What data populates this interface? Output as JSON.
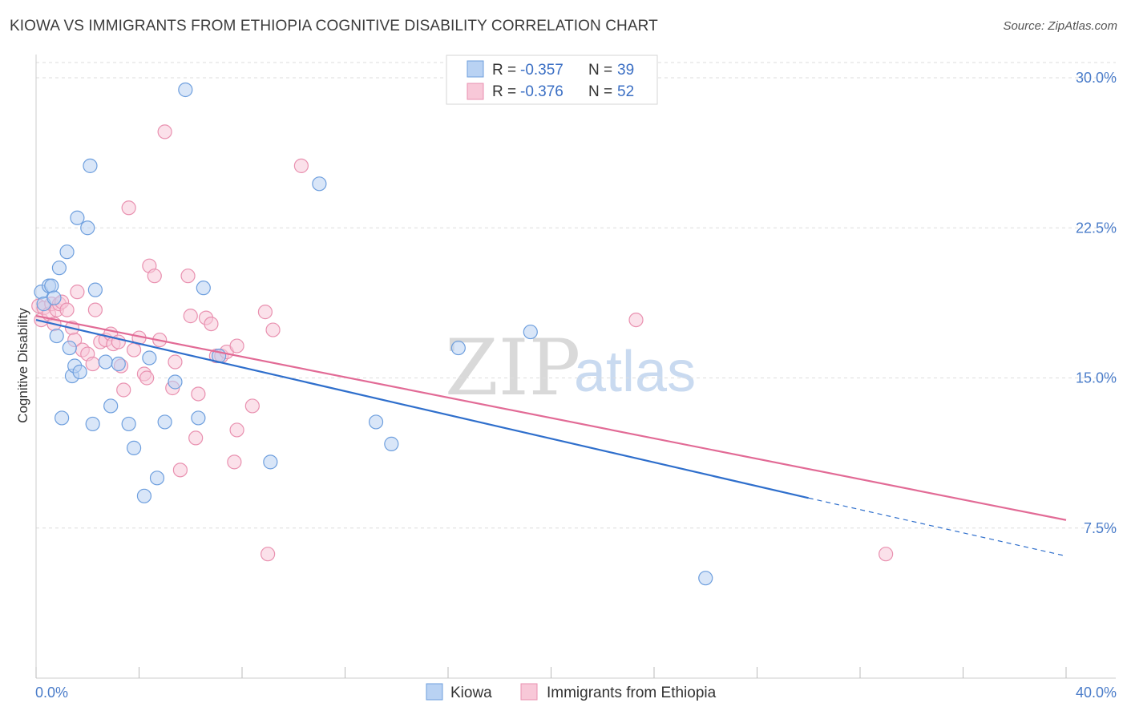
{
  "header": {
    "title": "KIOWA VS IMMIGRANTS FROM ETHIOPIA COGNITIVE DISABILITY CORRELATION CHART",
    "source": "Source: ZipAtlas.com"
  },
  "watermark": {
    "zip": "ZIP",
    "atlas": "atlas"
  },
  "colors": {
    "kiowa_fill": "#b9d2f3",
    "kiowa_stroke": "#6e9fde",
    "kiowa_line": "#2f6fcc",
    "ethiopia_fill": "#f8c8d8",
    "ethiopia_stroke": "#e991b0",
    "ethiopia_line": "#e26b96",
    "axis_text": "#4a7cc9"
  },
  "legend": {
    "rows": [
      {
        "r_label": "R =",
        "r_value": "-0.357",
        "n_label": "N =",
        "n_value": "39"
      },
      {
        "r_label": "R =",
        "r_value": "-0.376",
        "n_label": "N =",
        "n_value": "52"
      }
    ]
  },
  "chart_data": {
    "type": "scatter",
    "title": "KIOWA VS IMMIGRANTS FROM ETHIOPIA COGNITIVE DISABILITY CORRELATION CHART",
    "xlabel": "",
    "ylabel": "Cognitive Disability",
    "xlim": [
      0,
      40
    ],
    "ylim": [
      0,
      31
    ],
    "x_tick_labels": [
      "0.0%",
      "40.0%"
    ],
    "y_ticks": [
      7.5,
      15.0,
      22.5,
      30.0
    ],
    "y_tick_labels": [
      "7.5%",
      "15.0%",
      "22.5%",
      "30.0%"
    ],
    "grid": true,
    "legend_position": "top-center",
    "series": [
      {
        "name": "Kiowa",
        "r": -0.357,
        "n": 39,
        "trend": {
          "x0": 0,
          "y0": 17.9,
          "x1": 30.0,
          "y1": 9.0,
          "dash_to_x": 40,
          "dash_to_y": 6.1
        },
        "points": [
          [
            0.2,
            19.3
          ],
          [
            0.3,
            18.7
          ],
          [
            0.5,
            19.6
          ],
          [
            0.6,
            19.6
          ],
          [
            0.7,
            19.0
          ],
          [
            0.8,
            17.1
          ],
          [
            0.9,
            20.5
          ],
          [
            1.0,
            13.0
          ],
          [
            1.2,
            21.3
          ],
          [
            1.3,
            16.5
          ],
          [
            1.4,
            15.1
          ],
          [
            1.5,
            15.6
          ],
          [
            1.6,
            23.0
          ],
          [
            1.7,
            15.3
          ],
          [
            2.0,
            22.5
          ],
          [
            2.1,
            25.6
          ],
          [
            2.2,
            12.7
          ],
          [
            2.3,
            19.4
          ],
          [
            2.7,
            15.8
          ],
          [
            2.9,
            13.6
          ],
          [
            3.2,
            15.7
          ],
          [
            3.6,
            12.7
          ],
          [
            3.8,
            11.5
          ],
          [
            4.2,
            9.1
          ],
          [
            4.7,
            10.0
          ],
          [
            4.4,
            16.0
          ],
          [
            5.0,
            12.8
          ],
          [
            5.4,
            14.8
          ],
          [
            5.8,
            29.4
          ],
          [
            6.3,
            13.0
          ],
          [
            6.5,
            19.5
          ],
          [
            7.1,
            16.1
          ],
          [
            9.1,
            10.8
          ],
          [
            11.0,
            24.7
          ],
          [
            13.2,
            12.8
          ],
          [
            13.8,
            11.7
          ],
          [
            16.4,
            16.5
          ],
          [
            19.2,
            17.3
          ],
          [
            26.0,
            5.0
          ]
        ]
      },
      {
        "name": "Immigrants from Ethiopia",
        "r": -0.376,
        "n": 52,
        "trend": {
          "x0": 0,
          "y0": 18.1,
          "x1": 40.0,
          "y1": 7.9
        },
        "points": [
          [
            0.1,
            18.6
          ],
          [
            0.2,
            17.9
          ],
          [
            0.3,
            18.5
          ],
          [
            0.5,
            18.2
          ],
          [
            0.6,
            18.7
          ],
          [
            0.7,
            17.7
          ],
          [
            0.8,
            18.4
          ],
          [
            0.9,
            18.7
          ],
          [
            1.0,
            18.8
          ],
          [
            1.2,
            18.4
          ],
          [
            1.4,
            17.5
          ],
          [
            1.5,
            16.9
          ],
          [
            1.6,
            19.3
          ],
          [
            1.8,
            16.4
          ],
          [
            2.0,
            16.2
          ],
          [
            2.2,
            15.7
          ],
          [
            2.3,
            18.4
          ],
          [
            2.5,
            16.8
          ],
          [
            2.7,
            16.9
          ],
          [
            2.9,
            17.2
          ],
          [
            3.0,
            16.7
          ],
          [
            3.2,
            16.8
          ],
          [
            3.3,
            15.6
          ],
          [
            3.4,
            14.4
          ],
          [
            3.6,
            23.5
          ],
          [
            3.8,
            16.4
          ],
          [
            4.0,
            17.0
          ],
          [
            4.2,
            15.2
          ],
          [
            4.3,
            15.0
          ],
          [
            4.4,
            20.6
          ],
          [
            4.6,
            20.1
          ],
          [
            4.8,
            16.9
          ],
          [
            5.0,
            27.3
          ],
          [
            5.3,
            14.5
          ],
          [
            5.4,
            15.8
          ],
          [
            5.6,
            10.4
          ],
          [
            5.9,
            20.1
          ],
          [
            6.0,
            18.1
          ],
          [
            6.2,
            12.0
          ],
          [
            6.3,
            14.2
          ],
          [
            6.6,
            18.0
          ],
          [
            6.8,
            17.7
          ],
          [
            7.0,
            16.1
          ],
          [
            7.2,
            16.1
          ],
          [
            7.4,
            16.3
          ],
          [
            7.7,
            10.8
          ],
          [
            7.8,
            12.4
          ],
          [
            7.8,
            16.6
          ],
          [
            8.4,
            13.6
          ],
          [
            8.9,
            18.3
          ],
          [
            9.0,
            6.2
          ],
          [
            10.3,
            25.6
          ]
        ],
        "extra_points": [
          [
            9.2,
            17.4
          ],
          [
            23.3,
            17.9
          ],
          [
            33.0,
            6.2
          ]
        ]
      }
    ]
  },
  "bottom_legend": {
    "items": [
      "Kiowa",
      "Immigrants from Ethiopia"
    ]
  }
}
